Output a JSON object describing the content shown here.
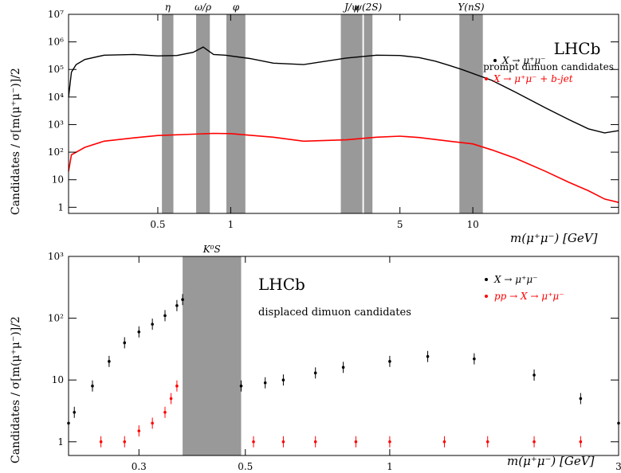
{
  "chart_data": [
    {
      "type": "line",
      "title": "",
      "header": "LHCb",
      "subheader": "prompt dimuon candidates",
      "xlabel": "m(μ⁺μ⁻)  [GeV]",
      "ylabel": "Candidates / σ[m(μ⁺μ⁻)]/2",
      "x_scale": "log",
      "y_scale": "log",
      "xlim": [
        0.214,
        40
      ],
      "ylim": [
        0.6,
        10000000
      ],
      "x_ticks": [
        "0.5",
        "1",
        "5",
        "10"
      ],
      "y_ticks": [
        "1",
        "10",
        "10²",
        "10³",
        "10⁴",
        "10⁵",
        "10⁶",
        "10⁷"
      ],
      "vetoed_regions": [
        {
          "label": "η",
          "range": [
            0.52,
            0.58
          ]
        },
        {
          "label": "ω/ρ",
          "range": [
            0.72,
            0.82
          ]
        },
        {
          "label": "φ",
          "range": [
            0.96,
            1.15
          ]
        },
        {
          "label": "J/ψ",
          "range": [
            2.85,
            3.5
          ]
        },
        {
          "label": "ψ(2S)",
          "range": [
            3.55,
            3.85
          ]
        },
        {
          "label": "Υ(nS)",
          "range": [
            8.8,
            11.0
          ]
        }
      ],
      "series": [
        {
          "name": "X → μ⁺μ⁻",
          "color": "#000000",
          "x": [
            0.214,
            0.22,
            0.23,
            0.25,
            0.3,
            0.4,
            0.5,
            0.6,
            0.7,
            0.77,
            0.85,
            0.95,
            1.2,
            1.5,
            2,
            3,
            4,
            5,
            6,
            7,
            8,
            9,
            12,
            15,
            20,
            25,
            30,
            35,
            40
          ],
          "y": [
            10000,
            80000,
            150000,
            230000,
            330000,
            350000,
            310000,
            320000,
            420000,
            650000,
            350000,
            330000,
            250000,
            170000,
            150000,
            260000,
            330000,
            320000,
            270000,
            200000,
            140000,
            100000,
            40000,
            15000,
            4000,
            1500,
            700,
            500,
            600
          ]
        },
        {
          "name": "X → μ⁺μ⁻ + b-jet",
          "color": "#ff0000",
          "x": [
            0.214,
            0.22,
            0.25,
            0.3,
            0.4,
            0.5,
            0.7,
            0.85,
            1,
            1.5,
            2,
            3,
            4,
            5,
            6,
            8,
            10,
            12,
            15,
            20,
            25,
            30,
            35,
            40
          ],
          "y": [
            20,
            80,
            150,
            250,
            330,
            400,
            450,
            480,
            470,
            350,
            250,
            280,
            350,
            380,
            340,
            250,
            200,
            120,
            60,
            20,
            8,
            4,
            2,
            1.5
          ]
        }
      ]
    },
    {
      "type": "scatter",
      "title": "",
      "header": "LHCb",
      "subheader": "displaced dimuon candidates",
      "xlabel": "m(μ⁺μ⁻)  [GeV]",
      "ylabel": "Candidates / σ[m(μ⁺μ⁻)]/2",
      "x_scale": "log",
      "y_scale": "log",
      "xlim": [
        0.214,
        3
      ],
      "ylim": [
        0.6,
        1000
      ],
      "x_ticks": [
        "0.3",
        "0.5",
        "1",
        "3"
      ],
      "y_ticks": [
        "1",
        "10",
        "10²",
        "10³"
      ],
      "vetoed_regions": [
        {
          "label": "K⁰S",
          "range": [
            0.37,
            0.49
          ]
        }
      ],
      "series": [
        {
          "name": "X → μ⁺μ⁻",
          "color": "#000000",
          "x": [
            0.214,
            0.22,
            0.24,
            0.26,
            0.28,
            0.3,
            0.32,
            0.34,
            0.36,
            0.37,
            0.49,
            0.55,
            0.6,
            0.7,
            0.8,
            1.0,
            1.2,
            1.5,
            2.0,
            2.5,
            3.0
          ],
          "y": [
            2,
            3,
            8,
            20,
            40,
            60,
            80,
            110,
            160,
            200,
            8,
            9,
            10,
            13,
            16,
            20,
            24,
            22,
            12,
            5,
            2
          ]
        },
        {
          "name": "pp → X → μ⁺μ⁻",
          "color": "#ff0000",
          "x": [
            0.25,
            0.28,
            0.3,
            0.32,
            0.34,
            0.35,
            0.36,
            0.52,
            0.6,
            0.7,
            0.85,
            1.0,
            1.3,
            1.6,
            2.0,
            2.5
          ],
          "y": [
            1,
            1,
            1.5,
            2,
            3,
            5,
            8,
            1,
            1,
            1,
            1,
            1,
            1,
            1,
            1,
            1
          ]
        }
      ]
    }
  ]
}
